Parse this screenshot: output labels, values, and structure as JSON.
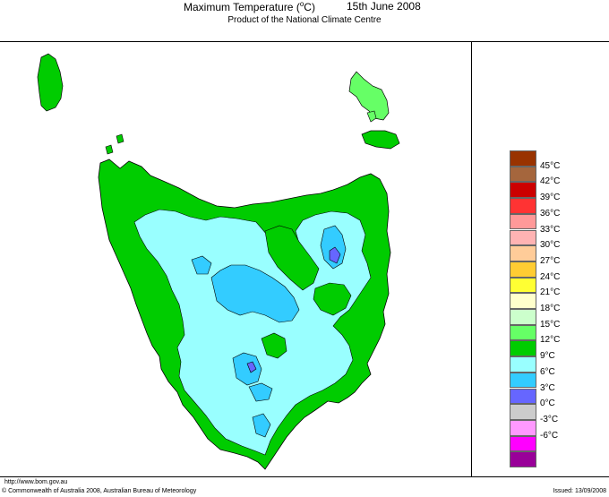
{
  "header": {
    "title_text": "Maximum Temperature (",
    "title_degree": "o",
    "title_unit_end": "C)",
    "date": "15th June 2008",
    "subtitle": "Product of the National Climate Centre"
  },
  "footer": {
    "url": "http://www.bom.gov.au",
    "copyright": "© Commonwealth of Australia 2008, Australian Bureau of Meteorology",
    "issued": "Issued: 13/09/2008"
  },
  "legend": {
    "unit_symbol": "°C",
    "items": [
      {
        "label": "45°C",
        "color": "#993300"
      },
      {
        "label": "42°C",
        "color": "#a5663d"
      },
      {
        "label": "39°C",
        "color": "#cc0000"
      },
      {
        "label": "36°C",
        "color": "#ff3333"
      },
      {
        "label": "33°C",
        "color": "#ff9999"
      },
      {
        "label": "30°C",
        "color": "#ffb3b3"
      },
      {
        "label": "27°C",
        "color": "#ffcc99"
      },
      {
        "label": "24°C",
        "color": "#ffcc33"
      },
      {
        "label": "21°C",
        "color": "#ffff33"
      },
      {
        "label": "18°C",
        "color": "#ffffcc"
      },
      {
        "label": "15°C",
        "color": "#ccffcc"
      },
      {
        "label": "12°C",
        "color": "#66ff66"
      },
      {
        "label": "9°C",
        "color": "#00cc00"
      },
      {
        "label": "6°C",
        "color": "#99ffff"
      },
      {
        "label": "3°C",
        "color": "#33ccff"
      },
      {
        "label": "0°C",
        "color": "#6666ff"
      },
      {
        "label": "-3°C",
        "color": "#cccccc"
      },
      {
        "label": "-6°C",
        "color": "#ff99ff"
      }
    ],
    "bottom_colors": [
      "#ff00ff",
      "#990099"
    ]
  },
  "map": {
    "region": "Tasmania",
    "colors": {
      "green": "#00cc00",
      "light_green": "#66ff66",
      "cyan": "#99ffff",
      "blue": "#33ccff",
      "purple": "#6666ff",
      "outline": "#000000"
    }
  }
}
